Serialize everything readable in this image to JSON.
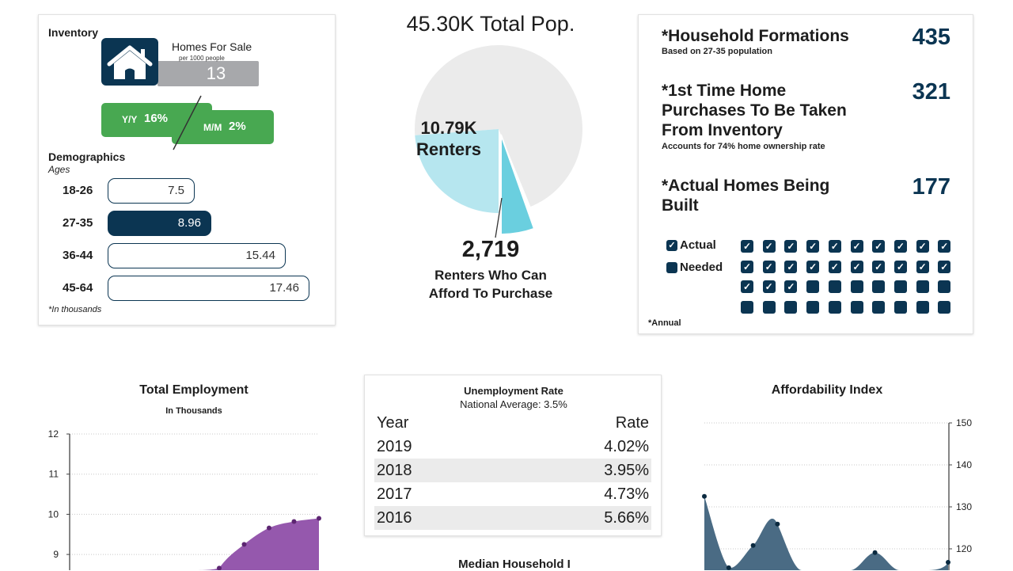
{
  "inventory": {
    "title": "Inventory",
    "homes_for_sale_label": "Homes For Sale",
    "per_label": "per 1000 people",
    "homes_for_sale_value": "13",
    "yy_label": "Y/Y",
    "yy_value": "16%",
    "mm_label": "M/M",
    "mm_value": "2%",
    "icon": "house-icon"
  },
  "demographics": {
    "title": "Demographics",
    "subtitle": "Ages",
    "rows": [
      {
        "age": "18-26",
        "value": "7.5",
        "num": 7.5,
        "highlight": false
      },
      {
        "age": "27-35",
        "value": "8.96",
        "num": 8.96,
        "highlight": true
      },
      {
        "age": "36-44",
        "value": "15.44",
        "num": 15.44,
        "highlight": false
      },
      {
        "age": "45-64",
        "value": "17.46",
        "num": 17.46,
        "highlight": false
      }
    ],
    "footnote": "*In thousands"
  },
  "population": {
    "title": "45.30K Total Pop.",
    "renters_value": "10.79K",
    "renters_label": "Renters",
    "afford_value": "2,719",
    "afford_label_1": "Renters Who Can",
    "afford_label_2": "Afford To Purchase",
    "colors": {
      "total": "#ebebeb",
      "renters": "#b6e6ef",
      "afford": "#6acfdf"
    }
  },
  "stats": [
    {
      "title": "*Household Formations",
      "sub": "Based on 27-35 population",
      "value": "435"
    },
    {
      "title": "*1st Time Home Purchases To Be Taken From Inventory",
      "sub": "Accounts for 74% home ownership rate",
      "value": "321"
    },
    {
      "title": "*Actual Homes Being Built",
      "sub": "",
      "value": "177"
    }
  ],
  "waffle": {
    "legend_actual": "Actual",
    "legend_needed": "Needed",
    "checked": 23,
    "total": 40,
    "footnote": "*Annual",
    "color": "#0b3552"
  },
  "unemployment": {
    "title": "Unemployment Rate",
    "subtitle": "National Average: 3.5%",
    "header_year": "Year",
    "header_rate": "Rate",
    "rows": [
      {
        "year": "2019",
        "rate": "4.02%"
      },
      {
        "year": "2018",
        "rate": "3.95%"
      },
      {
        "year": "2017",
        "rate": "4.73%"
      },
      {
        "year": "2016",
        "rate": "5.66%"
      }
    ]
  },
  "bottom_cut_title": "Median Household I",
  "chart_data": [
    {
      "type": "area",
      "title": "Total Employment",
      "subtitle": "In Thousands",
      "y_ticks": [
        "12",
        "11",
        "10",
        "9"
      ],
      "ylim_visible": [
        8.6,
        12
      ],
      "values": [
        null,
        null,
        null,
        null,
        null,
        null,
        8.66,
        9.25,
        9.66,
        9.82,
        9.9
      ],
      "color": "#9558ad",
      "grid": true
    },
    {
      "type": "area",
      "title": "Affordability Index",
      "y_ticks": [
        "150",
        "140",
        "130",
        "120"
      ],
      "ylim_visible": [
        115,
        150
      ],
      "y_axis": "right",
      "values": [
        132.5,
        115.5,
        120.8,
        125.9,
        null,
        null,
        null,
        119.1,
        null,
        null,
        116.8
      ],
      "color": "#4a6b84",
      "grid": true
    }
  ]
}
